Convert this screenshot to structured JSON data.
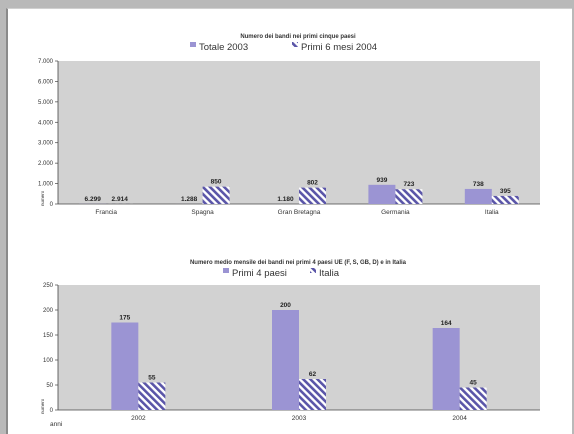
{
  "colors": {
    "primary_bar": "#9b94d3",
    "hatch": "#5a55a8",
    "plot_bg": "#d2d2d2",
    "page_bg": "#ffffff"
  },
  "chart_data": [
    {
      "type": "bar",
      "title": "Numero dei bandi nei primi cinque paesi",
      "categories": [
        "Francia",
        "Spagna",
        "Gran Bretagna",
        "Germania",
        "Italia"
      ],
      "series": [
        {
          "name": "Totale 2003",
          "values": [
            6.299,
            1.288,
            1.18,
            939,
            738
          ],
          "labels": [
            "6.299",
            "1.288",
            "1.180",
            "939",
            "738"
          ]
        },
        {
          "name": "Primi 6 mesi 2004",
          "values": [
            2.914,
            850,
            802,
            723,
            395
          ],
          "labels": [
            "2.914",
            "850",
            "802",
            "723",
            "395"
          ]
        }
      ],
      "ylabel": "numero",
      "ylim": [
        0,
        7000
      ],
      "yticks": [
        "0",
        "1.000",
        "2.000",
        "3.000",
        "4.000",
        "5.000",
        "6.000",
        "7.000"
      ],
      "grid": false,
      "legend": "top"
    },
    {
      "type": "bar",
      "title": "Numero medio mensile dei bandi nei primi 4 paesi UE (F, S, GB, D) e in Italia",
      "categories": [
        "2002",
        "2003",
        "2004"
      ],
      "series": [
        {
          "name": "Primi 4 paesi",
          "values": [
            175,
            200,
            164
          ],
          "labels": [
            "175",
            "200",
            "164"
          ]
        },
        {
          "name": "Italia",
          "values": [
            55,
            62,
            45
          ],
          "labels": [
            "55",
            "62",
            "45"
          ]
        }
      ],
      "ylabel": "numero",
      "xlabel": "anni",
      "ylim": [
        0,
        250
      ],
      "yticks": [
        "0",
        "50",
        "100",
        "150",
        "200",
        "250"
      ],
      "grid": false,
      "legend": "top"
    }
  ]
}
